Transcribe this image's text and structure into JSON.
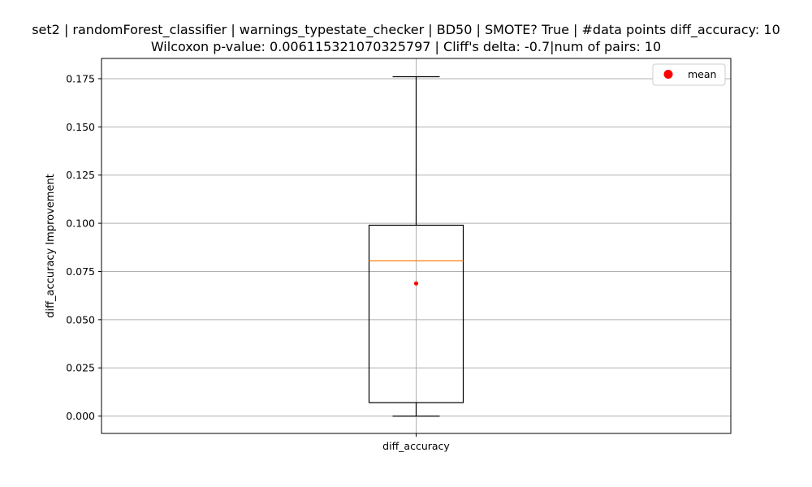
{
  "chart_data": {
    "type": "box",
    "title_line1": "set2 | randomForest_classifier | warnings_typestate_checker | BD50 | SMOTE? True | #data points diff_accuracy: 10",
    "title_line2": "Wilcoxon p-value: 0.006115321070325797 | Cliff's delta: -0.7|num of pairs: 10",
    "xlabel": "",
    "ylabel": "diff_accuracy Improvement",
    "categories": [
      "diff_accuracy"
    ],
    "ylim": [
      -0.009,
      0.1855
    ],
    "yticks": [
      0.0,
      0.025,
      0.05,
      0.075,
      0.1,
      0.125,
      0.15,
      0.175
    ],
    "ytick_labels": [
      "0.000",
      "0.025",
      "0.050",
      "0.075",
      "0.100",
      "0.125",
      "0.150",
      "0.175"
    ],
    "grid": true,
    "legend": {
      "position": "top-right",
      "entries": [
        {
          "label": "mean",
          "color": "#ff0000",
          "marker": "circle"
        }
      ]
    },
    "boxes": [
      {
        "category": "diff_accuracy",
        "whisker_low": 0.0,
        "q1": 0.007,
        "median": 0.0805,
        "q3": 0.099,
        "whisker_high": 0.176,
        "mean": 0.0688
      }
    ],
    "colors": {
      "box": "#000000",
      "median": "#ff7f0e",
      "mean": "#ff0000",
      "grid": "#b0b0b0"
    }
  }
}
